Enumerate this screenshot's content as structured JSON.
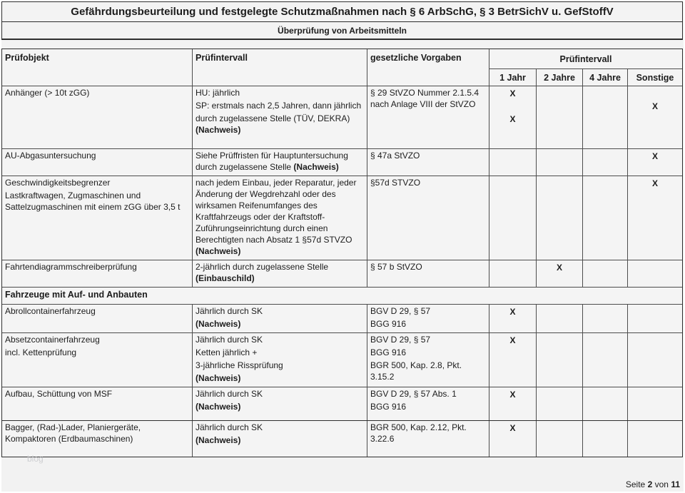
{
  "page": {
    "title": "Gefährdungsbeurteilung und festgelegte Schutzmaßnahmen nach § 6 ArbSchG, § 3 BetrSichV u. GefStoffV",
    "subtitle": "Überprüfung von Arbeitsmitteln",
    "watermark": "blog",
    "footer": {
      "label": "Seite",
      "page": "2",
      "of": "von",
      "total": "11"
    }
  },
  "table": {
    "headers": {
      "object": "Prüfobjekt",
      "interval": "Prüfintervall",
      "legal": "gesetzliche Vorgaben",
      "interval_group": "Prüfintervall",
      "intervals": [
        "1 Jahr",
        "2 Jahre",
        "4 Jahre",
        "Sonstige"
      ]
    },
    "rows": [
      {
        "type": "data",
        "object": [
          [
            {
              "t": "Anhänger (> 10t zGG)"
            }
          ]
        ],
        "interval": [
          [
            {
              "t": "HU: jährlich"
            }
          ],
          [
            {
              "t": "SP: erstmals nach 2,5 Jahren, dann jährlich"
            }
          ],
          [
            {
              "t": "durch zugelassene Stelle (TÜV, DEKRA) "
            },
            {
              "t": "(Nachweis)",
              "b": true
            }
          ]
        ],
        "legal": [
          [
            {
              "t": "§ 29 StVZO Nummer 2.1.5.4 nach Anlage VIII der StVZO"
            }
          ]
        ],
        "marks": [
          [
            "X",
            "",
            "X"
          ],
          [],
          [],
          [
            "",
            "X"
          ]
        ]
      },
      {
        "type": "data",
        "object": [
          [
            {
              "t": "AU-Abgasuntersuchung"
            }
          ]
        ],
        "interval": [
          [
            {
              "t": "Siehe Prüffristen für Hauptuntersuchung durch zugelassene Stelle "
            },
            {
              "t": "(Nachweis)",
              "b": true
            }
          ]
        ],
        "legal": [
          [
            {
              "t": "§ 47a StVZO"
            }
          ]
        ],
        "marks": [
          [],
          [],
          [],
          [
            "X"
          ]
        ]
      },
      {
        "type": "data",
        "object": [
          [
            {
              "t": "Geschwindigkeitsbegrenzer"
            }
          ],
          [
            {
              "t": "Lastkraftwagen, Zugmaschinen und Sattelzugmaschinen mit einem zGG über 3,5 t"
            }
          ]
        ],
        "interval": [
          [
            {
              "t": "nach jedem Einbau, jeder Reparatur, jeder Änderung der Wegdrehzahl oder des wirksamen Reifenumfanges des Kraftfahrzeugs oder der Kraftstoff-Zuführungseinrichtung durch einen Berechtigten nach Absatz 1 §57d STVZO "
            },
            {
              "t": "(Nachweis)",
              "b": true
            }
          ]
        ],
        "legal": [
          [
            {
              "t": "§57d STVZO"
            }
          ]
        ],
        "marks": [
          [],
          [],
          [],
          [
            "X"
          ]
        ]
      },
      {
        "type": "data",
        "object": [
          [
            {
              "t": "Fahrtendiagrammschreiberprüfung"
            }
          ]
        ],
        "interval": [
          [
            {
              "t": "2-jährlich durch zugelassene Stelle "
            },
            {
              "t": "(Einbauschild)",
              "b": true
            }
          ]
        ],
        "legal": [
          [
            {
              "t": "§ 57 b StVZO"
            }
          ]
        ],
        "marks": [
          [],
          [
            "X"
          ],
          [],
          []
        ]
      },
      {
        "type": "section",
        "label": "Fahrzeuge mit Auf- und Anbauten"
      },
      {
        "type": "data",
        "object": [
          [
            {
              "t": "Abrollcontainerfahrzeug"
            }
          ]
        ],
        "interval": [
          [
            {
              "t": "Jährlich durch SK"
            }
          ],
          [
            {
              "t": "(Nachweis)",
              "b": true
            }
          ]
        ],
        "legal": [
          [
            {
              "t": "BGV D 29, § 57"
            }
          ],
          [
            {
              "t": "BGG 916"
            }
          ]
        ],
        "marks": [
          [
            "X"
          ],
          [],
          [],
          []
        ]
      },
      {
        "type": "data",
        "object": [
          [
            {
              "t": "Absetzcontainerfahrzeug"
            }
          ],
          [
            {
              "t": "incl. Kettenprüfung"
            }
          ]
        ],
        "interval": [
          [
            {
              "t": "Jährlich durch SK"
            }
          ],
          [
            {
              "t": "Ketten jährlich +"
            }
          ],
          [
            {
              "t": "3-jährliche Rissprüfung"
            }
          ],
          [
            {
              "t": "(Nachweis)",
              "b": true
            }
          ]
        ],
        "legal": [
          [
            {
              "t": "BGV D 29, § 57"
            }
          ],
          [
            {
              "t": "BGG 916"
            }
          ],
          [
            {
              "t": "BGR 500, Kap. 2.8, Pkt. 3.15.2"
            }
          ]
        ],
        "marks": [
          [
            "X"
          ],
          [],
          [],
          []
        ]
      },
      {
        "type": "data",
        "object": [
          [
            {
              "t": "Aufbau, Schüttung von MSF"
            }
          ]
        ],
        "interval": [
          [
            {
              "t": "Jährlich durch SK"
            }
          ],
          [
            {
              "t": "(Nachweis)",
              "b": true
            }
          ]
        ],
        "legal": [
          [
            {
              "t": "BGV D 29, § 57 Abs. 1"
            }
          ],
          [
            {
              "t": "BGG 916"
            }
          ]
        ],
        "marks": [
          [
            "X"
          ],
          [],
          [],
          []
        ]
      }
    ],
    "extra_rows": [
      {
        "type": "data",
        "object": [
          [
            {
              "t": "Bagger, (Rad-)Lader, Planiergeräte, Kompaktoren (Erdbaumaschinen)"
            }
          ]
        ],
        "interval": [
          [
            {
              "t": "Jährlich durch SK"
            }
          ],
          [
            {
              "t": "(Nachweis)",
              "b": true
            }
          ]
        ],
        "legal": [
          [
            {
              "t": "BGR 500, Kap. 2.12, Pkt. 3.22.6"
            }
          ]
        ],
        "marks": [
          [
            "X"
          ],
          [],
          [],
          []
        ]
      }
    ]
  }
}
